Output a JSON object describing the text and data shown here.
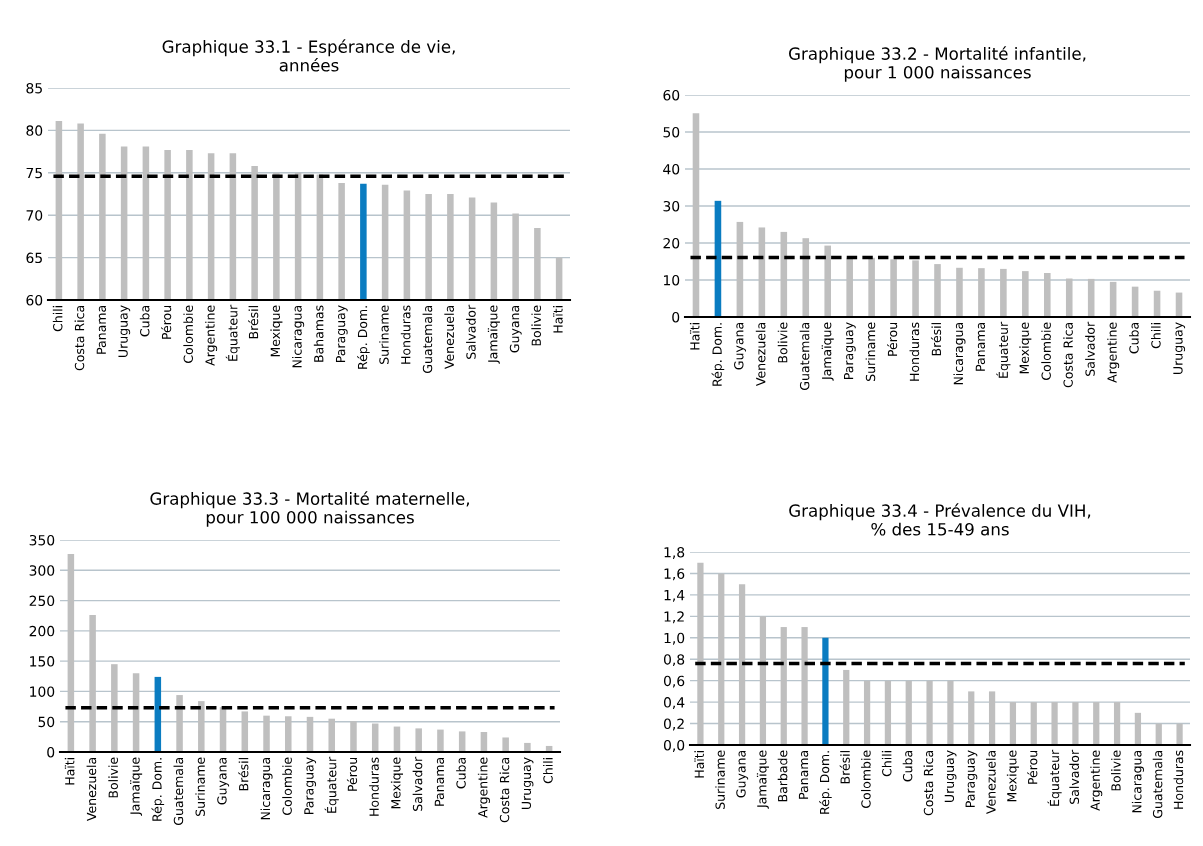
{
  "chart_data": [
    {
      "type": "bar",
      "title": "Graphique 33.1 - Espérance de vie,\nannées",
      "categories": [
        "Chili",
        "Costa Rica",
        "Panama",
        "Uruguay",
        "Cuba",
        "Pérou",
        "Colombie",
        "Argentine",
        "Équateur",
        "Brésil",
        "Mexique",
        "Nicaragua",
        "Bahamas",
        "Paraguay",
        "Rép. Dom.",
        "Suriname",
        "Honduras",
        "Guatemala",
        "Venezuela",
        "Salvador",
        "Jamaïque",
        "Guyana",
        "Bolivie",
        "Haïti"
      ],
      "values": [
        81.1,
        80.8,
        79.6,
        78.1,
        78.1,
        77.7,
        77.7,
        77.3,
        77.3,
        75.8,
        75.0,
        75.0,
        74.8,
        73.8,
        73.7,
        73.6,
        72.9,
        72.5,
        72.5,
        72.1,
        71.5,
        70.2,
        68.5,
        65.0
      ],
      "colors": [
        "#bfbfbf",
        "#bfbfbf",
        "#bfbfbf",
        "#bfbfbf",
        "#bfbfbf",
        "#bfbfbf",
        "#bfbfbf",
        "#bfbfbf",
        "#bfbfbf",
        "#bfbfbf",
        "#bfbfbf",
        "#bfbfbf",
        "#bfbfbf",
        "#bfbfbf",
        "#0a7cc1",
        "#bfbfbf",
        "#bfbfbf",
        "#bfbfbf",
        "#bfbfbf",
        "#bfbfbf",
        "#bfbfbf",
        "#bfbfbf",
        "#bfbfbf",
        "#bfbfbf"
      ],
      "ylim": [
        60,
        85
      ],
      "yticks": [
        60,
        65,
        70,
        75,
        80,
        85
      ],
      "grid": "y",
      "legend": false,
      "ref_lines": [
        {
          "axis": "y",
          "value": 74.6,
          "color": "#000000",
          "line_style": "dashed"
        }
      ]
    },
    {
      "type": "bar",
      "title": "Graphique 33.2 - Mortalité infantile,\npour 1 000 naissances",
      "categories": [
        "Haïti",
        "Rép. Dom.",
        "Guyana",
        "Venezuela",
        "Bolivie",
        "Guatemala",
        "Jamaïque",
        "Paraguay",
        "Suriname",
        "Pérou",
        "Honduras",
        "Brésil",
        "Nicaragua",
        "Panama",
        "Équateur",
        "Mexique",
        "Colombie",
        "Costa Rica",
        "Salvador",
        "Argentine",
        "Cuba",
        "Chili",
        "Uruguay"
      ],
      "values": [
        55.1,
        31.4,
        25.7,
        24.2,
        23.0,
        21.3,
        19.3,
        16.0,
        16.0,
        15.6,
        15.3,
        14.3,
        13.3,
        13.2,
        13.0,
        12.4,
        11.9,
        10.4,
        10.3,
        9.5,
        8.2,
        7.1,
        6.6
      ],
      "colors": [
        "#bfbfbf",
        "#0a7cc1",
        "#bfbfbf",
        "#bfbfbf",
        "#bfbfbf",
        "#bfbfbf",
        "#bfbfbf",
        "#bfbfbf",
        "#bfbfbf",
        "#bfbfbf",
        "#bfbfbf",
        "#bfbfbf",
        "#bfbfbf",
        "#bfbfbf",
        "#bfbfbf",
        "#bfbfbf",
        "#bfbfbf",
        "#bfbfbf",
        "#bfbfbf",
        "#bfbfbf",
        "#bfbfbf",
        "#bfbfbf",
        "#bfbfbf"
      ],
      "ylim": [
        0,
        60
      ],
      "yticks": [
        0,
        10,
        20,
        30,
        40,
        50,
        60
      ],
      "grid": "y",
      "legend": false,
      "ref_lines": [
        {
          "axis": "y",
          "value": 16.1,
          "color": "#000000",
          "line_style": "dashed"
        }
      ]
    },
    {
      "type": "bar",
      "title": "Graphique 33.3 - Mortalité maternelle,\npour 100 000 naissances",
      "categories": [
        "Haïti",
        "Venezuela",
        "Bolivie",
        "Jamaïque",
        "Rép. Dom.",
        "Guatemala",
        "Suriname",
        "Guyana",
        "Brésil",
        "Nicaragua",
        "Colombie",
        "Paraguay",
        "Équateur",
        "Pérou",
        "Honduras",
        "Mexique",
        "Salvador",
        "Panama",
        "Cuba",
        "Argentine",
        "Costa Rica",
        "Uruguay",
        "Chili"
      ],
      "values": [
        327,
        226,
        145,
        130,
        124,
        94,
        84,
        74,
        67,
        60,
        59,
        58,
        55,
        51,
        47,
        42,
        39,
        37,
        34,
        33,
        24,
        15,
        10
      ],
      "colors": [
        "#bfbfbf",
        "#bfbfbf",
        "#bfbfbf",
        "#bfbfbf",
        "#0a7cc1",
        "#bfbfbf",
        "#bfbfbf",
        "#bfbfbf",
        "#bfbfbf",
        "#bfbfbf",
        "#bfbfbf",
        "#bfbfbf",
        "#bfbfbf",
        "#bfbfbf",
        "#bfbfbf",
        "#bfbfbf",
        "#bfbfbf",
        "#bfbfbf",
        "#bfbfbf",
        "#bfbfbf",
        "#bfbfbf",
        "#bfbfbf",
        "#bfbfbf"
      ],
      "ylim": [
        0,
        350
      ],
      "yticks": [
        0,
        50,
        100,
        150,
        200,
        250,
        300,
        350
      ],
      "grid": "y",
      "legend": false,
      "ref_lines": [
        {
          "axis": "y",
          "value": 73,
          "color": "#000000",
          "line_style": "dashed"
        }
      ]
    },
    {
      "type": "bar",
      "title": "Graphique 33.4 - Prévalence du VIH,\n% des 15-49 ans",
      "categories": [
        "Haïti",
        "Suriname",
        "Guyana",
        "Jamaïque",
        "Barbade",
        "Panama",
        "Rép. Dom.",
        "Brésil",
        "Colombie",
        "Chili",
        "Cuba",
        "Costa Rica",
        "Uruguay",
        "Paraguay",
        "Venezuela",
        "Mexique",
        "Pérou",
        "Équateur",
        "Salvador",
        "Argentine",
        "Bolivie",
        "Nicaragua",
        "Guatemala",
        "Honduras"
      ],
      "values": [
        1.7,
        1.6,
        1.5,
        1.2,
        1.1,
        1.1,
        1.0,
        0.7,
        0.6,
        0.6,
        0.6,
        0.6,
        0.6,
        0.5,
        0.5,
        0.4,
        0.4,
        0.4,
        0.4,
        0.4,
        0.4,
        0.3,
        0.2,
        0.2
      ],
      "colors": [
        "#bfbfbf",
        "#bfbfbf",
        "#bfbfbf",
        "#bfbfbf",
        "#bfbfbf",
        "#bfbfbf",
        "#0a7cc1",
        "#bfbfbf",
        "#bfbfbf",
        "#bfbfbf",
        "#bfbfbf",
        "#bfbfbf",
        "#bfbfbf",
        "#bfbfbf",
        "#bfbfbf",
        "#bfbfbf",
        "#bfbfbf",
        "#bfbfbf",
        "#bfbfbf",
        "#bfbfbf",
        "#bfbfbf",
        "#bfbfbf",
        "#bfbfbf",
        "#bfbfbf"
      ],
      "ylim": [
        0,
        1.8
      ],
      "yticks": [
        {
          "value": 0,
          "label": "0,0"
        },
        {
          "value": 0.2,
          "label": "0,2"
        },
        {
          "value": 0.4,
          "label": "0,4"
        },
        {
          "value": 0.6,
          "label": "0,6"
        },
        {
          "value": 0.8,
          "label": "0,8"
        },
        {
          "value": 1.0,
          "label": "1,0"
        },
        {
          "value": 1.2,
          "label": "1,2"
        },
        {
          "value": 1.4,
          "label": "1,4"
        },
        {
          "value": 1.6,
          "label": "1,6"
        },
        {
          "value": 1.8,
          "label": "1,8"
        }
      ],
      "grid": "y",
      "legend": false,
      "ref_lines": [
        {
          "axis": "y",
          "value": 0.76,
          "color": "#000000",
          "line_style": "dashed"
        }
      ]
    }
  ]
}
